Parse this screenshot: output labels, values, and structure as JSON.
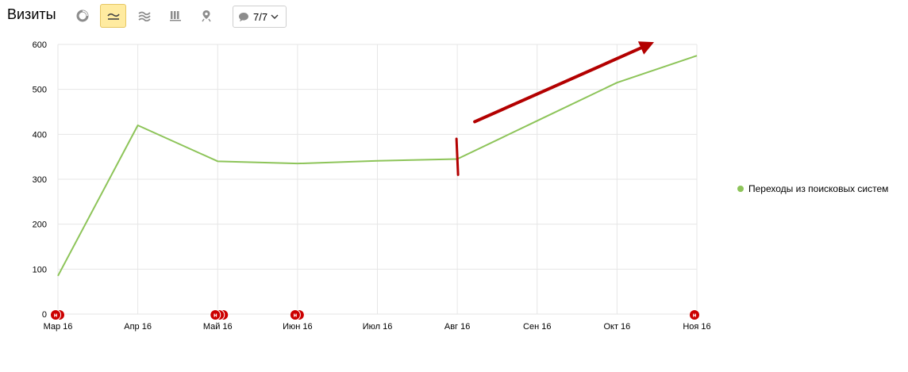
{
  "toolbar": {
    "title": "Визиты",
    "view_buttons": [
      {
        "icon": "pie-chart-icon",
        "active": false
      },
      {
        "icon": "line-chart-icon",
        "active": true
      },
      {
        "icon": "area-chart-icon",
        "active": false
      },
      {
        "icon": "bar-chart-icon",
        "active": false
      },
      {
        "icon": "map-pin-icon",
        "active": false
      }
    ],
    "notes_filter": {
      "icon": "speech-bubble-icon",
      "label": "7/7",
      "chevron_icon": "chevron-down-icon"
    }
  },
  "colors": {
    "series": "#8dc459",
    "grid": "#e6e6e6",
    "note_marker": "#cc0000",
    "annotation": "#b30000",
    "active_button": "#ffeba0"
  },
  "chart_data": {
    "type": "line",
    "x": [
      "Мар 16",
      "Апр 16",
      "Май 16",
      "Июн 16",
      "Июл 16",
      "Авг 16",
      "Сен 16",
      "Окт 16",
      "Ноя 16"
    ],
    "series": [
      {
        "name": "Переходы из поисковых систем",
        "values": [
          85,
          420,
          340,
          335,
          341,
          345,
          430,
          515,
          575
        ],
        "color": "#8dc459"
      }
    ],
    "title": "",
    "xlabel": "",
    "ylabel": "",
    "ylim": [
      0,
      600
    ],
    "yticks": [
      0,
      100,
      200,
      300,
      400,
      500,
      600
    ],
    "grid": true,
    "legend_position": "right",
    "note_markers": [
      {
        "x": "Мар 16",
        "count": 2,
        "letter": "н"
      },
      {
        "x": "Май 16",
        "count": 3,
        "letter": "н"
      },
      {
        "x": "Июн 16",
        "count": 2,
        "letter": "н"
      },
      {
        "x": "Ноя 16",
        "count": 1,
        "letter": "н"
      }
    ],
    "annotations": [
      {
        "type": "vertical-mark",
        "x": "Авг 16",
        "y_from": 310,
        "y_to": 390
      },
      {
        "type": "arrow",
        "x_from": "Авг 16",
        "y_from": 428,
        "x_to": "Ноя 16",
        "y_to": 605
      }
    ]
  }
}
